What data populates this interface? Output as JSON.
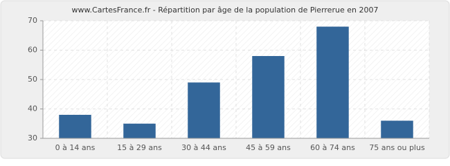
{
  "chart_data": {
    "type": "bar",
    "title": "www.CartesFrance.fr - Répartition par âge de la population de Pierrerue en 2007",
    "categories": [
      "0 à 14 ans",
      "15 à 29 ans",
      "30 à 44 ans",
      "45 à 59 ans",
      "60 à 74 ans",
      "75 ans ou plus"
    ],
    "values": [
      38,
      35,
      49,
      58,
      68,
      36
    ],
    "color": "#336699",
    "ylim": [
      30,
      70
    ],
    "yticks": [
      30,
      40,
      50,
      60,
      70
    ],
    "grid": true
  }
}
